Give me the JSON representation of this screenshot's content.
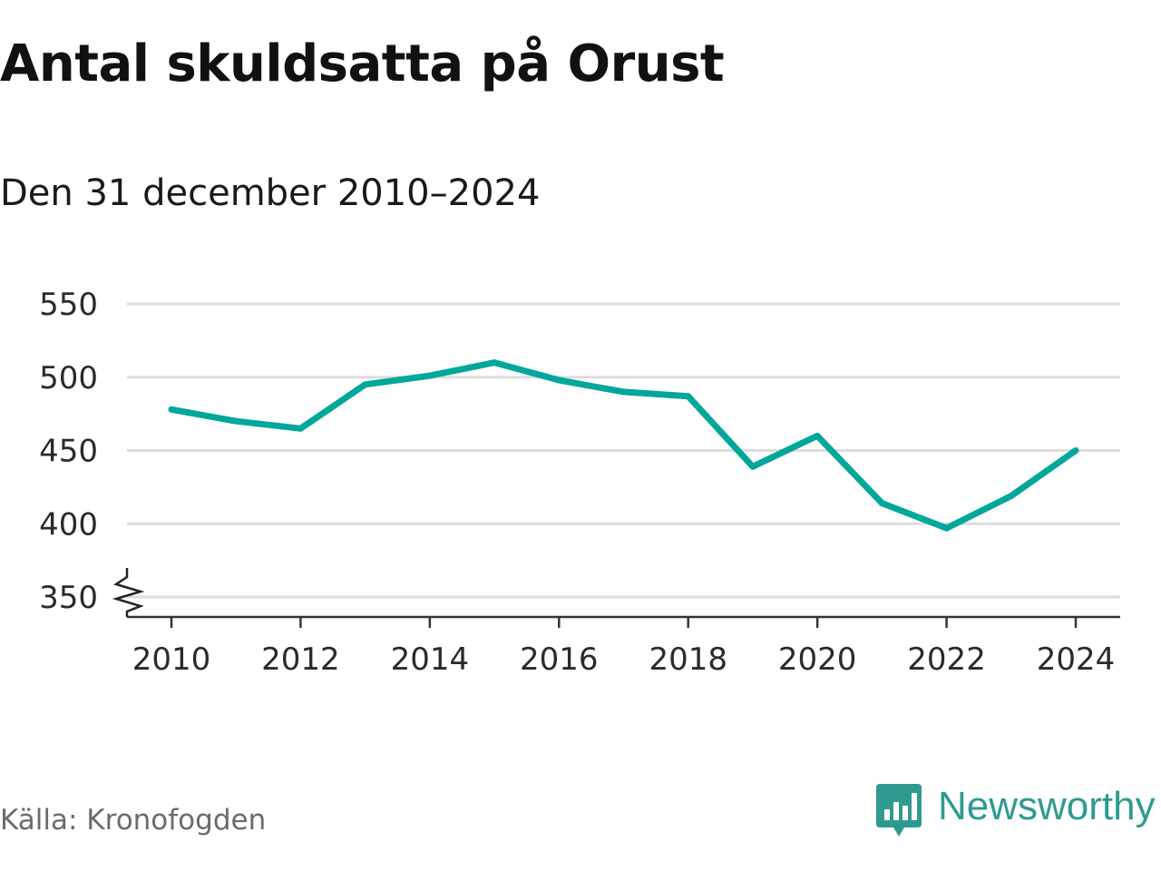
{
  "chart_data": {
    "type": "line",
    "title": "Antal skuldsatta på Orust",
    "subtitle": "Den 31 december 2010–2024",
    "xlabel": "",
    "ylabel": "",
    "x": [
      2010,
      2011,
      2012,
      2013,
      2014,
      2015,
      2016,
      2017,
      2018,
      2019,
      2020,
      2021,
      2022,
      2023,
      2024
    ],
    "series": [
      {
        "name": "Antal skuldsatta",
        "values": [
          478,
          470,
          465,
          495,
          501,
          510,
          498,
          490,
          487,
          439,
          460,
          414,
          397,
          419,
          450
        ]
      }
    ],
    "xticks": [
      "2010",
      "2012",
      "2014",
      "2016",
      "2018",
      "2020",
      "2022",
      "2024"
    ],
    "yticks": [
      "350",
      "400",
      "450",
      "500",
      "550"
    ],
    "ylim": [
      350,
      550
    ],
    "xlim": [
      2010,
      2024
    ],
    "grid": true,
    "axis_break": true,
    "line_color": "#00a79a",
    "grid_color": "#dddddd"
  },
  "source": "Källa: Kronofogden",
  "brand": {
    "name": "Newsworthy",
    "color": "#2f9a90",
    "icon": "newsworthy-logo-icon"
  }
}
